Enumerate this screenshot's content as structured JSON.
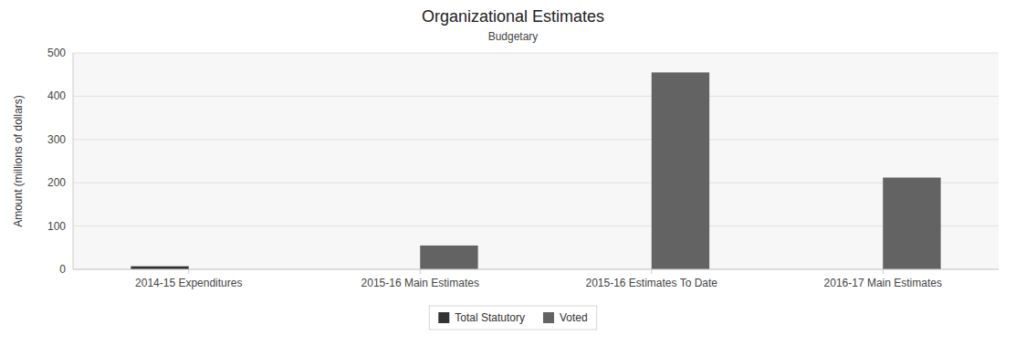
{
  "chart_data": {
    "type": "bar",
    "title": "Organizational Estimates",
    "subtitle": "Budgetary",
    "ylabel": "Amount (millions of dollars)",
    "categories": [
      "2014-15 Expenditures",
      "2015-16 Main Estimates",
      "2015-16 Estimates To Date",
      "2016-17 Main Estimates"
    ],
    "series": [
      {
        "name": "Total Statutory",
        "color": "#333333",
        "values": [
          7,
          0,
          0,
          0
        ]
      },
      {
        "name": "Voted",
        "color": "#636363",
        "values": [
          0,
          55,
          455,
          212
        ]
      }
    ],
    "ylim": [
      0,
      500
    ],
    "yticks": [
      0,
      100,
      200,
      300,
      400,
      500
    ],
    "grid": true,
    "legend": "bottom"
  }
}
